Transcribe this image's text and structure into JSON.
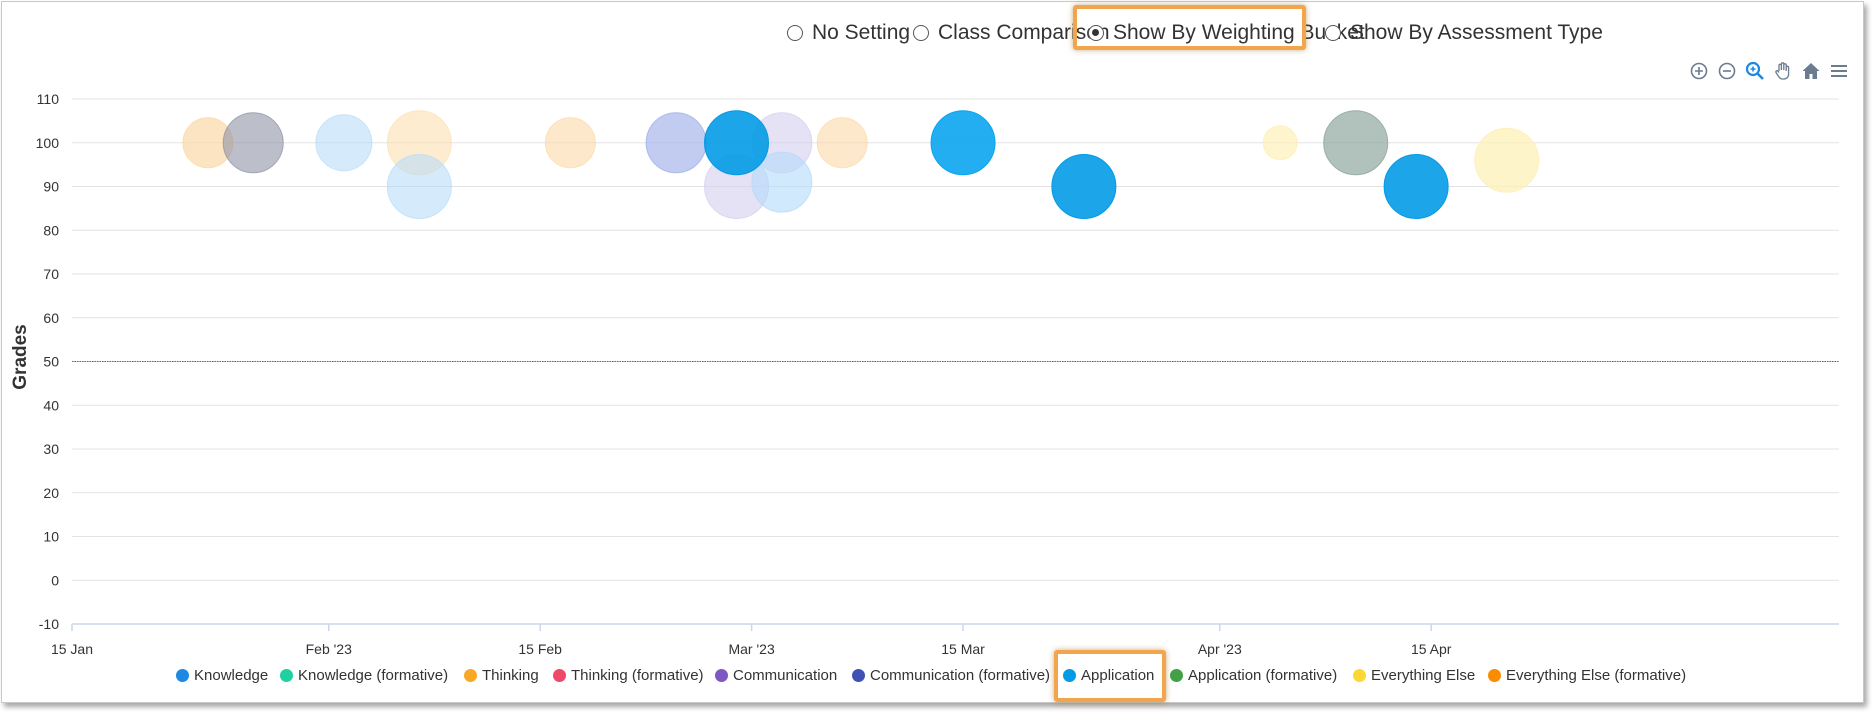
{
  "radio_options": [
    {
      "label": "No Setting",
      "checked": false
    },
    {
      "label": "Class Comparison",
      "checked": false
    },
    {
      "label": "Show By Weighting Bucket",
      "checked": true
    },
    {
      "label": "Show By Assessment Type",
      "checked": false
    }
  ],
  "toolbar": [
    "zoom-in-icon",
    "zoom-out-icon",
    "magnifier-icon",
    "pan-hand-icon",
    "home-icon",
    "menu-icon"
  ],
  "accent_colors": {
    "highlight": "#f2a54d",
    "tool_icon": "#6b7b90",
    "threshold": "#e03030"
  },
  "chart_data": {
    "type": "scatter",
    "variant": "bubble",
    "xlabel": "",
    "ylabel": "Grades",
    "ylim": [
      -10,
      110
    ],
    "xlim": [
      "2023-01-15",
      "2023-05-12"
    ],
    "x_ticks": [
      {
        "date": "2023-01-15",
        "label": "15 Jan"
      },
      {
        "date": "2023-02-01",
        "label": "Feb '23"
      },
      {
        "date": "2023-02-15",
        "label": "15 Feb"
      },
      {
        "date": "2023-03-01",
        "label": "Mar '23"
      },
      {
        "date": "2023-03-15",
        "label": "15 Mar"
      },
      {
        "date": "2023-04-01",
        "label": "Apr '23"
      },
      {
        "date": "2023-04-15",
        "label": "15 Apr"
      }
    ],
    "y_ticks": [
      110,
      100,
      90,
      80,
      70,
      60,
      50,
      40,
      30,
      20,
      10,
      0,
      -10
    ],
    "threshold_line": 50,
    "grid": true,
    "legend_position": "bottom",
    "legend": [
      {
        "name": "Knowledge",
        "color": "#1e88e5"
      },
      {
        "name": "Knowledge (formative)",
        "color": "#1fd1a0"
      },
      {
        "name": "Thinking",
        "color": "#f9a825"
      },
      {
        "name": "Thinking (formative)",
        "color": "#ef4968"
      },
      {
        "name": "Communication",
        "color": "#7e57c2"
      },
      {
        "name": "Communication (formative)",
        "color": "#3f51b5"
      },
      {
        "name": "Application",
        "color": "#039be5"
      },
      {
        "name": "Application (formative)",
        "color": "#43a047"
      },
      {
        "name": "Everything Else",
        "color": "#fdd835"
      },
      {
        "name": "Everything Else (formative)",
        "color": "#fb8c00"
      }
    ],
    "points": [
      {
        "date": "2023-01-24",
        "y": 100,
        "size": 25,
        "color": "#fbd9a8",
        "opacity": 0.7
      },
      {
        "date": "2023-01-27",
        "y": 100,
        "size": 30,
        "color": "#8f93a6",
        "opacity": 0.6
      },
      {
        "date": "2023-02-02",
        "y": 100,
        "size": 28,
        "color": "#b3dbfa",
        "opacity": 0.55
      },
      {
        "date": "2023-02-07",
        "y": 100,
        "size": 32,
        "color": "#fde0b0",
        "opacity": 0.6
      },
      {
        "date": "2023-02-07",
        "y": 90,
        "size": 32,
        "color": "#b3dbfa",
        "opacity": 0.55
      },
      {
        "date": "2023-02-17",
        "y": 100,
        "size": 25,
        "color": "#fbd9a8",
        "opacity": 0.6
      },
      {
        "date": "2023-02-24",
        "y": 100,
        "size": 30,
        "color": "#9fb1e8",
        "opacity": 0.65
      },
      {
        "date": "2023-02-28",
        "y": 90,
        "size": 32,
        "color": "#d6cef0",
        "opacity": 0.6
      },
      {
        "date": "2023-03-03",
        "y": 100,
        "size": 30,
        "color": "#d6cef0",
        "opacity": 0.6
      },
      {
        "date": "2023-03-03",
        "y": 91,
        "size": 30,
        "color": "#b3dbfa",
        "opacity": 0.6
      },
      {
        "date": "2023-02-28",
        "y": 100,
        "size": 32,
        "color": "#039be5",
        "opacity": 0.9
      },
      {
        "date": "2023-03-07",
        "y": 100,
        "size": 25,
        "color": "#fbd9a8",
        "opacity": 0.6
      },
      {
        "date": "2023-03-15",
        "y": 100,
        "size": 32,
        "color": "#0aa5f0",
        "opacity": 0.9
      },
      {
        "date": "2023-03-23",
        "y": 90,
        "size": 32,
        "color": "#039be5",
        "opacity": 0.9
      },
      {
        "date": "2023-04-05",
        "y": 100,
        "size": 17,
        "color": "#fdf0b8",
        "opacity": 0.7
      },
      {
        "date": "2023-04-10",
        "y": 100,
        "size": 32,
        "color": "#8fa89e",
        "opacity": 0.7
      },
      {
        "date": "2023-04-14",
        "y": 90,
        "size": 32,
        "color": "#039be5",
        "opacity": 0.9
      },
      {
        "date": "2023-04-20",
        "y": 96,
        "size": 32,
        "color": "#fdf0b8",
        "opacity": 0.75
      }
    ]
  }
}
